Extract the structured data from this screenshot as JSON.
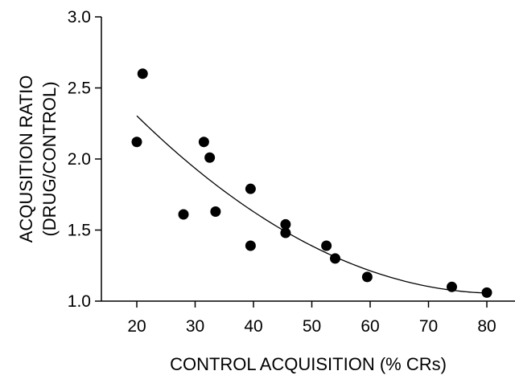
{
  "chart_data": {
    "type": "scatter",
    "title": "",
    "xlabel": "CONTROL ACQUISITION (% CRs)",
    "ylabel_lines": [
      "ACQUSITION RATIO",
      "(DRUG/CONTROL)"
    ],
    "xlim": [
      15,
      80
    ],
    "ylim": [
      1.0,
      3.0
    ],
    "x_ticks": [
      20,
      30,
      40,
      50,
      60,
      70,
      80
    ],
    "y_ticks": [
      "1.0",
      "1.5",
      "2.0",
      "2.5",
      "3.0"
    ],
    "grid": false,
    "points": [
      {
        "x": 20,
        "y": 2.12
      },
      {
        "x": 21,
        "y": 2.6
      },
      {
        "x": 28,
        "y": 1.61
      },
      {
        "x": 31.5,
        "y": 2.12
      },
      {
        "x": 32.5,
        "y": 2.01
      },
      {
        "x": 33.5,
        "y": 1.63
      },
      {
        "x": 39.5,
        "y": 1.79
      },
      {
        "x": 39.5,
        "y": 1.39
      },
      {
        "x": 45.5,
        "y": 1.54
      },
      {
        "x": 45.5,
        "y": 1.48
      },
      {
        "x": 52.5,
        "y": 1.39
      },
      {
        "x": 54,
        "y": 1.3
      },
      {
        "x": 59.5,
        "y": 1.17
      },
      {
        "x": 74,
        "y": 1.1
      },
      {
        "x": 80,
        "y": 1.06
      }
    ],
    "fit_curve": {
      "type": "quadratic",
      "x_range": [
        20,
        80
      ],
      "points": [
        {
          "x": 20,
          "y": 2.3
        },
        {
          "x": 30,
          "y": 1.94
        },
        {
          "x": 40,
          "y": 1.63
        },
        {
          "x": 50,
          "y": 1.39
        },
        {
          "x": 60,
          "y": 1.21
        },
        {
          "x": 70,
          "y": 1.1
        },
        {
          "x": 80,
          "y": 1.06
        }
      ]
    }
  }
}
